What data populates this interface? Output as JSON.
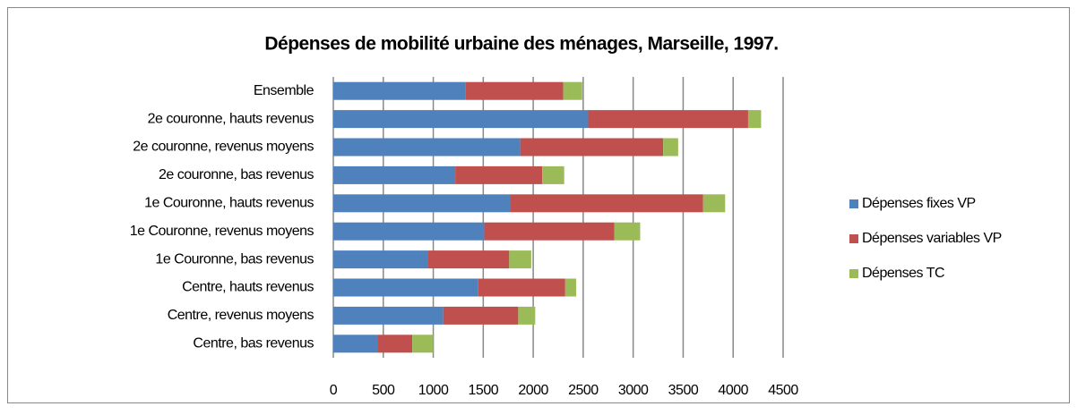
{
  "chart_data": {
    "type": "stacked_barh",
    "title": "Dépenses de mobilité urbaine des ménages, Marseille, 1997.",
    "categories": [
      "Ensemble",
      "2e couronne, hauts revenus",
      "2e couronne, revenus moyens",
      "2e couronne, bas revenus",
      "1e Couronne, hauts revenus",
      "1e Couronne, revenus moyens",
      "1e Couronne, bas revenus",
      "Centre, hauts revenus",
      "Centre, revenus moyens",
      "Centre, bas revenus"
    ],
    "series": [
      {
        "name": "Dépenses fixes VP",
        "color": "#4f81bd",
        "values": [
          1320,
          2550,
          1870,
          1220,
          1770,
          1510,
          950,
          1450,
          1100,
          440
        ]
      },
      {
        "name": "Dépenses variables VP",
        "color": "#c0504d",
        "values": [
          980,
          1600,
          1430,
          870,
          1930,
          1300,
          810,
          870,
          750,
          350
        ]
      },
      {
        "name": "Dépenses TC",
        "color": "#9bbb59",
        "values": [
          190,
          130,
          150,
          220,
          220,
          260,
          220,
          110,
          170,
          210
        ]
      }
    ],
    "xlim": [
      0,
      4500
    ],
    "xticks": [
      0,
      500,
      1000,
      1500,
      2000,
      2500,
      3000,
      3500,
      4000,
      4500
    ],
    "grid": true,
    "legend": "right"
  }
}
